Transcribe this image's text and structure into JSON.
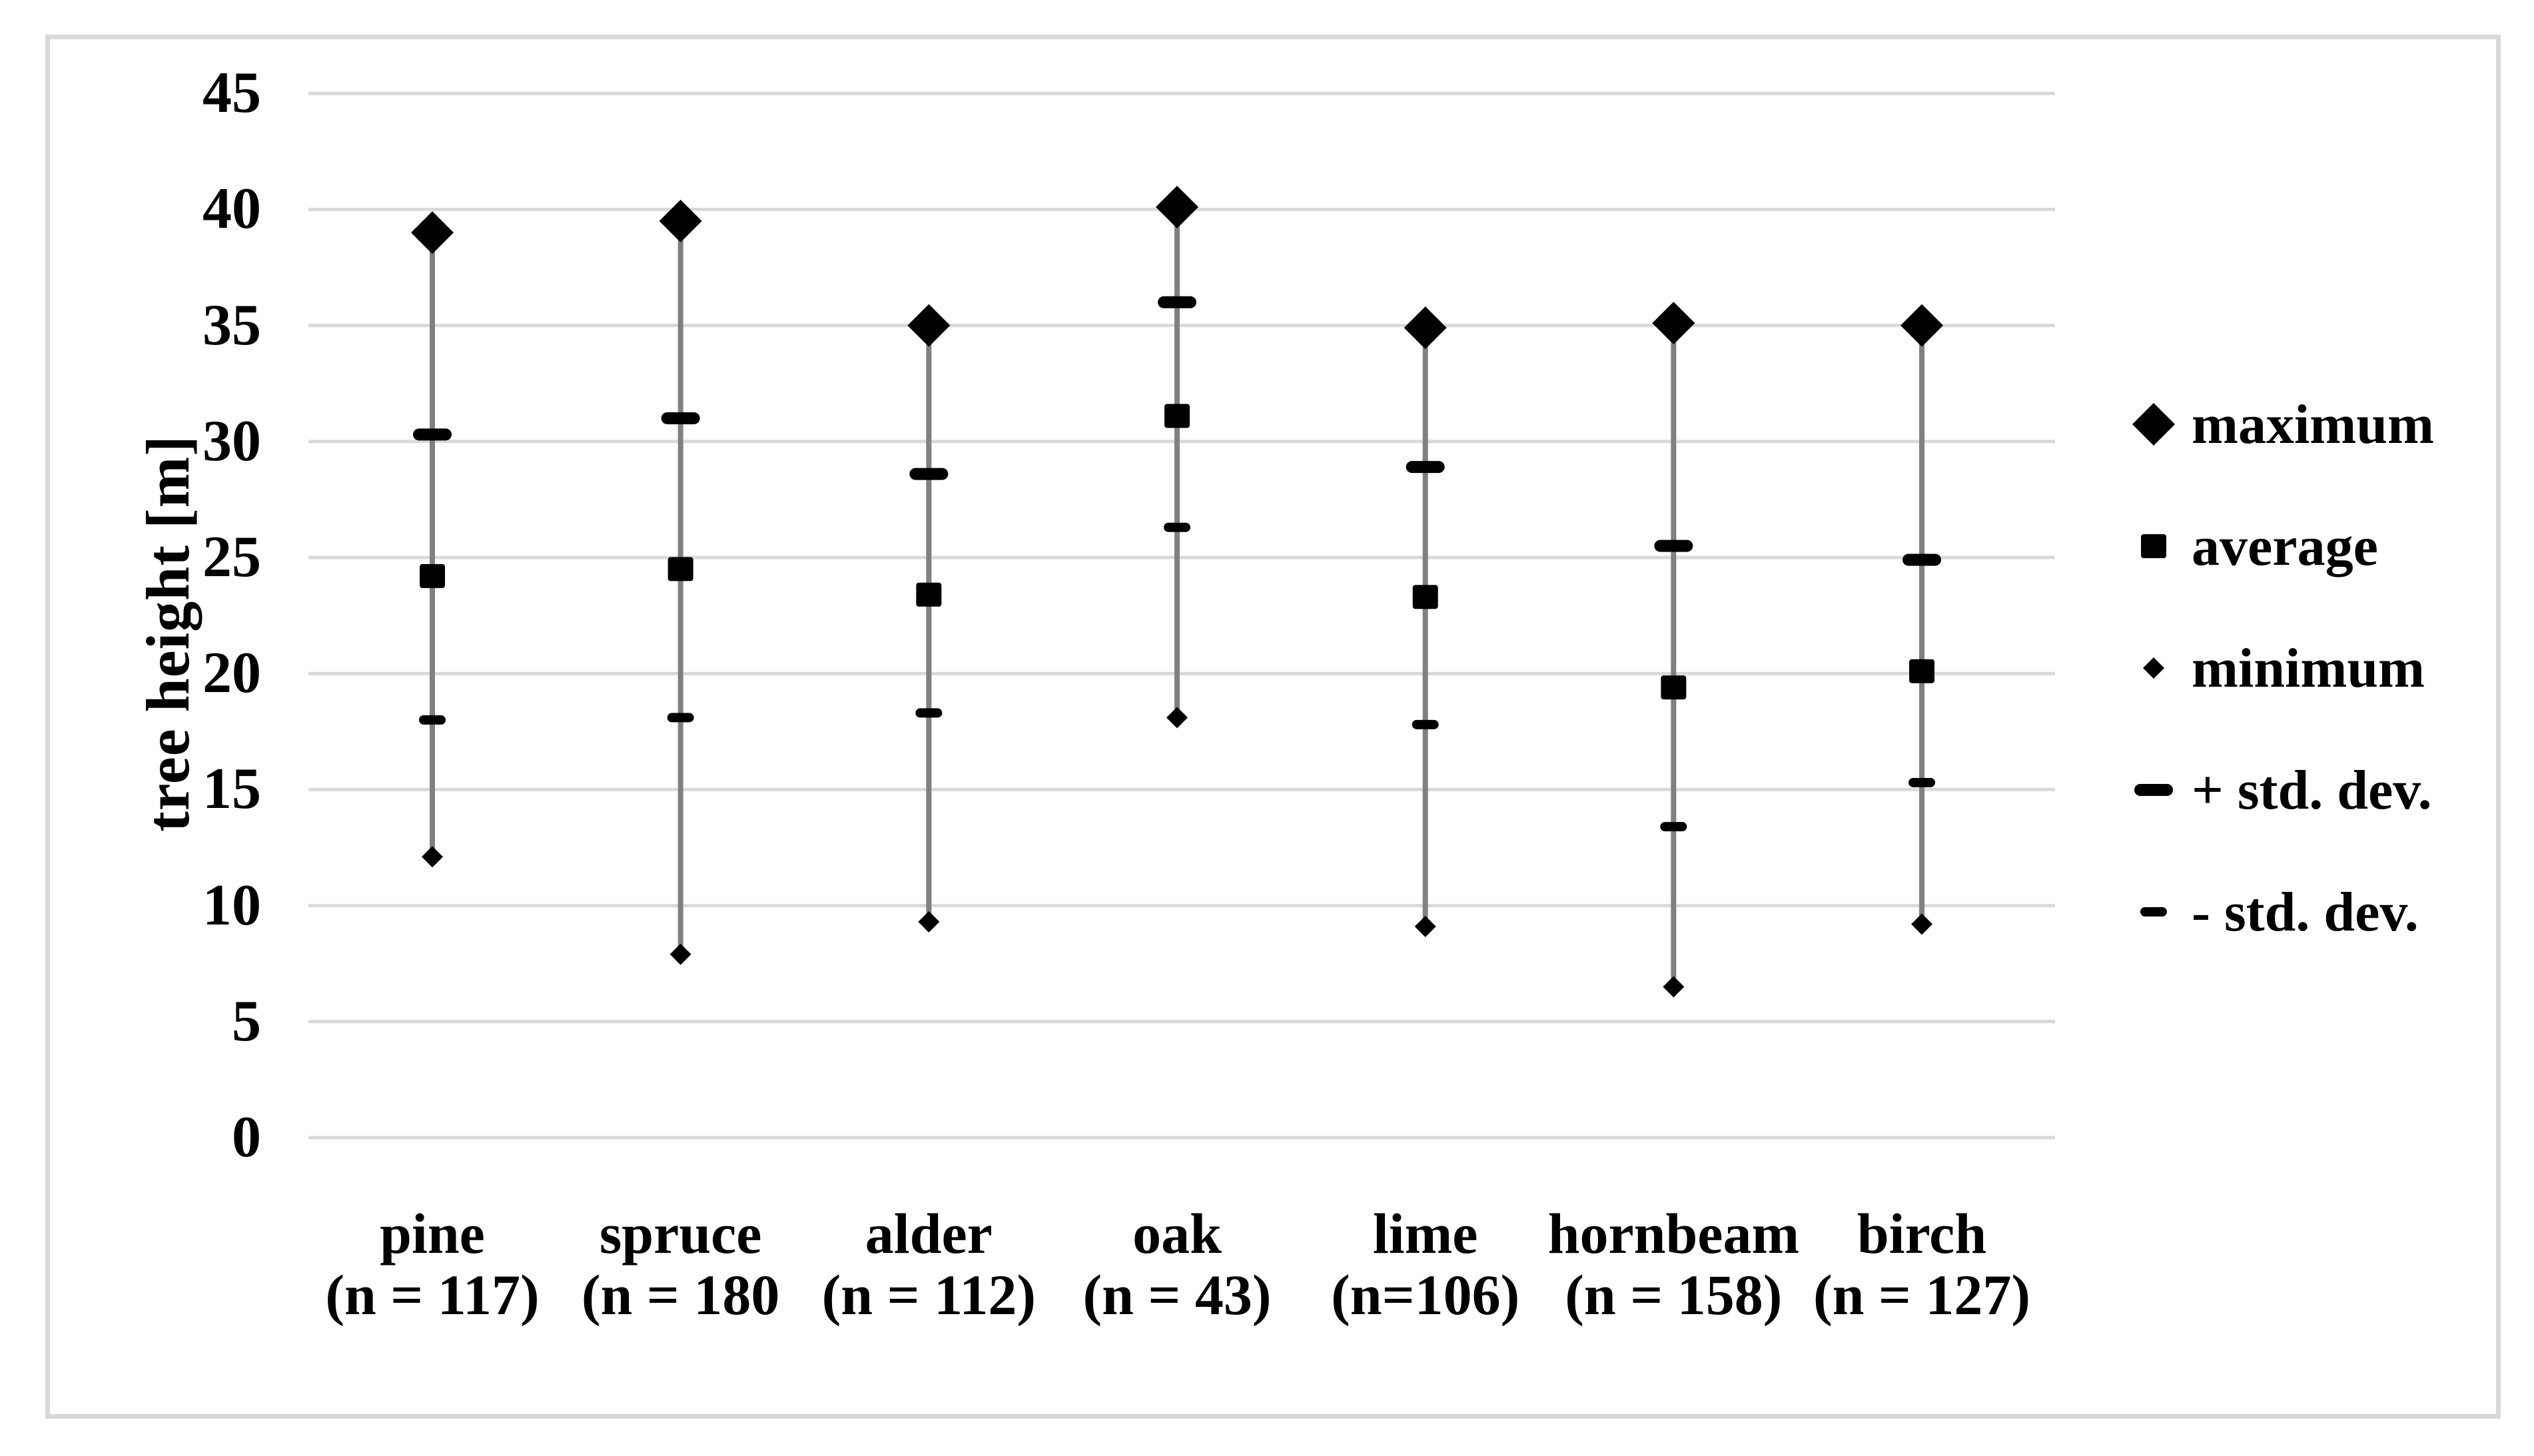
{
  "y_axis": {
    "title": "tree height [m]",
    "ticks": [
      0,
      5,
      10,
      15,
      20,
      25,
      30,
      35,
      40,
      45
    ]
  },
  "chart_data": {
    "type": "scatter",
    "subtype": "hi-lo-markers",
    "title": "",
    "xlabel": "",
    "ylabel": "tree height [m]",
    "ylim": [
      0,
      45
    ],
    "ytick_step": 5,
    "grid": "horizontal",
    "legend_position": "right",
    "categories": [
      {
        "label": "pine",
        "sub": "(n = 117)"
      },
      {
        "label": "spruce",
        "sub": "(n = 180"
      },
      {
        "label": "alder",
        "sub": "(n = 112)"
      },
      {
        "label": "oak",
        "sub": "(n = 43)"
      },
      {
        "label": "lime",
        "sub": "(n=106)"
      },
      {
        "label": "hornbeam",
        "sub": "(n = 158)"
      },
      {
        "label": "birch",
        "sub": "(n = 127)"
      }
    ],
    "series": [
      {
        "name": "maximum",
        "marker": "diamond-large",
        "values": [
          39.0,
          39.5,
          35.0,
          40.1,
          34.9,
          35.1,
          35.0
        ]
      },
      {
        "name": "average",
        "marker": "square",
        "values": [
          24.2,
          24.5,
          23.4,
          31.1,
          23.3,
          19.4,
          20.1
        ]
      },
      {
        "name": "minimum",
        "marker": "diamond-small",
        "values": [
          12.1,
          7.9,
          9.3,
          18.1,
          9.1,
          6.5,
          9.2
        ]
      },
      {
        "name": "+ std. dev.",
        "marker": "dash-thick",
        "values": [
          30.3,
          31.0,
          28.6,
          36.0,
          28.9,
          25.5,
          24.9
        ]
      },
      {
        "name": "- std. dev.",
        "marker": "dash-thin",
        "values": [
          18.0,
          18.1,
          18.3,
          26.3,
          17.8,
          13.4,
          15.3
        ]
      }
    ],
    "colors": {
      "marker": "#000000",
      "hi_lo_line": "#808080",
      "gridline": "#d9d9d9",
      "frame_border": "#d9d9d9",
      "background": "#ffffff",
      "text": "#000000"
    }
  }
}
